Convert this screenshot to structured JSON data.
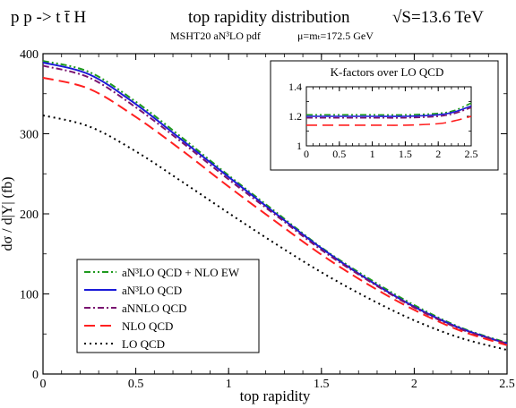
{
  "header": {
    "process": "p p -> t t̄ H",
    "title": "top rapidity distribution",
    "energy": "√S=13.6 TeV",
    "pdf": "MSHT20 aN³LO pdf",
    "scale": "μ=mₜ=172.5 GeV"
  },
  "colors": {
    "an3lo_ew": "#1e9a1e",
    "an3lo": "#1a1ad8",
    "annlo": "#7a1470",
    "nlo": "#ff2020",
    "lo": "#000000"
  },
  "chart_data": [
    {
      "type": "line",
      "title": "top rapidity distribution",
      "xlabel": "top rapidity",
      "ylabel": "dσ / d|Y|  (fb)",
      "xlim": [
        0,
        2.5
      ],
      "ylim": [
        0,
        400
      ],
      "xticks": [
        "0",
        "0.5",
        "1",
        "1.5",
        "2",
        "2.5"
      ],
      "yticks": [
        "0",
        "100",
        "200",
        "300",
        "400"
      ],
      "grid": false,
      "legend_position": "bottom-left",
      "x": [
        0,
        0.25,
        0.5,
        0.75,
        1.0,
        1.25,
        1.5,
        1.75,
        2.0,
        2.25,
        2.5
      ],
      "series": [
        {
          "name": "aN³LO QCD + NLO EW",
          "color": "#1e9a1e",
          "dash": "7,3,2,3,2,3",
          "values": [
            391,
            377,
            340,
            295,
            248,
            203,
            158,
            120,
            86,
            58,
            39
          ]
        },
        {
          "name": "aN³LO QCD",
          "color": "#1a1ad8",
          "dash": "",
          "values": [
            389,
            374,
            337,
            292,
            246,
            201,
            157,
            118,
            84,
            57,
            38
          ]
        },
        {
          "name": "aNNLO QCD",
          "color": "#7a1470",
          "dash": "7,3,2,3",
          "values": [
            385,
            370,
            333,
            289,
            243,
            199,
            155,
            117,
            83,
            56,
            38
          ]
        },
        {
          "name": "NLO QCD",
          "color": "#ff2020",
          "dash": "12,6",
          "values": [
            370,
            356,
            321,
            279,
            234,
            191,
            149,
            112,
            80,
            54,
            36
          ]
        },
        {
          "name": "LO QCD",
          "color": "#000000",
          "dash": "2,4",
          "values": [
            323,
            309,
            278,
            240,
            201,
            163,
            127,
            95,
            67,
            45,
            30
          ]
        }
      ]
    },
    {
      "type": "line",
      "title": "K-factors over LO QCD",
      "xlabel": "",
      "ylabel": "",
      "xlim": [
        0,
        2.5
      ],
      "ylim": [
        1,
        1.4
      ],
      "xticks": [
        "0",
        "0.5",
        "1",
        "1.5",
        "2",
        "2.5"
      ],
      "yticks": [
        "1",
        "1.2",
        "1.4"
      ],
      "grid": false,
      "x": [
        0,
        0.5,
        1.0,
        1.5,
        2.0,
        2.25,
        2.5
      ],
      "series": [
        {
          "name": "aN³LO QCD + NLO EW",
          "color": "#1e9a1e",
          "dash": "7,3,2,3,2,3",
          "values": [
            1.21,
            1.21,
            1.21,
            1.21,
            1.22,
            1.24,
            1.29
          ]
        },
        {
          "name": "aN³LO QCD",
          "color": "#1a1ad8",
          "dash": "",
          "values": [
            1.2,
            1.2,
            1.2,
            1.2,
            1.21,
            1.23,
            1.27
          ]
        },
        {
          "name": "aNNLO QCD",
          "color": "#7a1470",
          "dash": "7,3,2,3",
          "values": [
            1.19,
            1.19,
            1.19,
            1.19,
            1.2,
            1.22,
            1.26
          ]
        },
        {
          "name": "NLO QCD",
          "color": "#ff2020",
          "dash": "12,6",
          "values": [
            1.14,
            1.14,
            1.14,
            1.14,
            1.15,
            1.17,
            1.2
          ]
        }
      ]
    }
  ]
}
